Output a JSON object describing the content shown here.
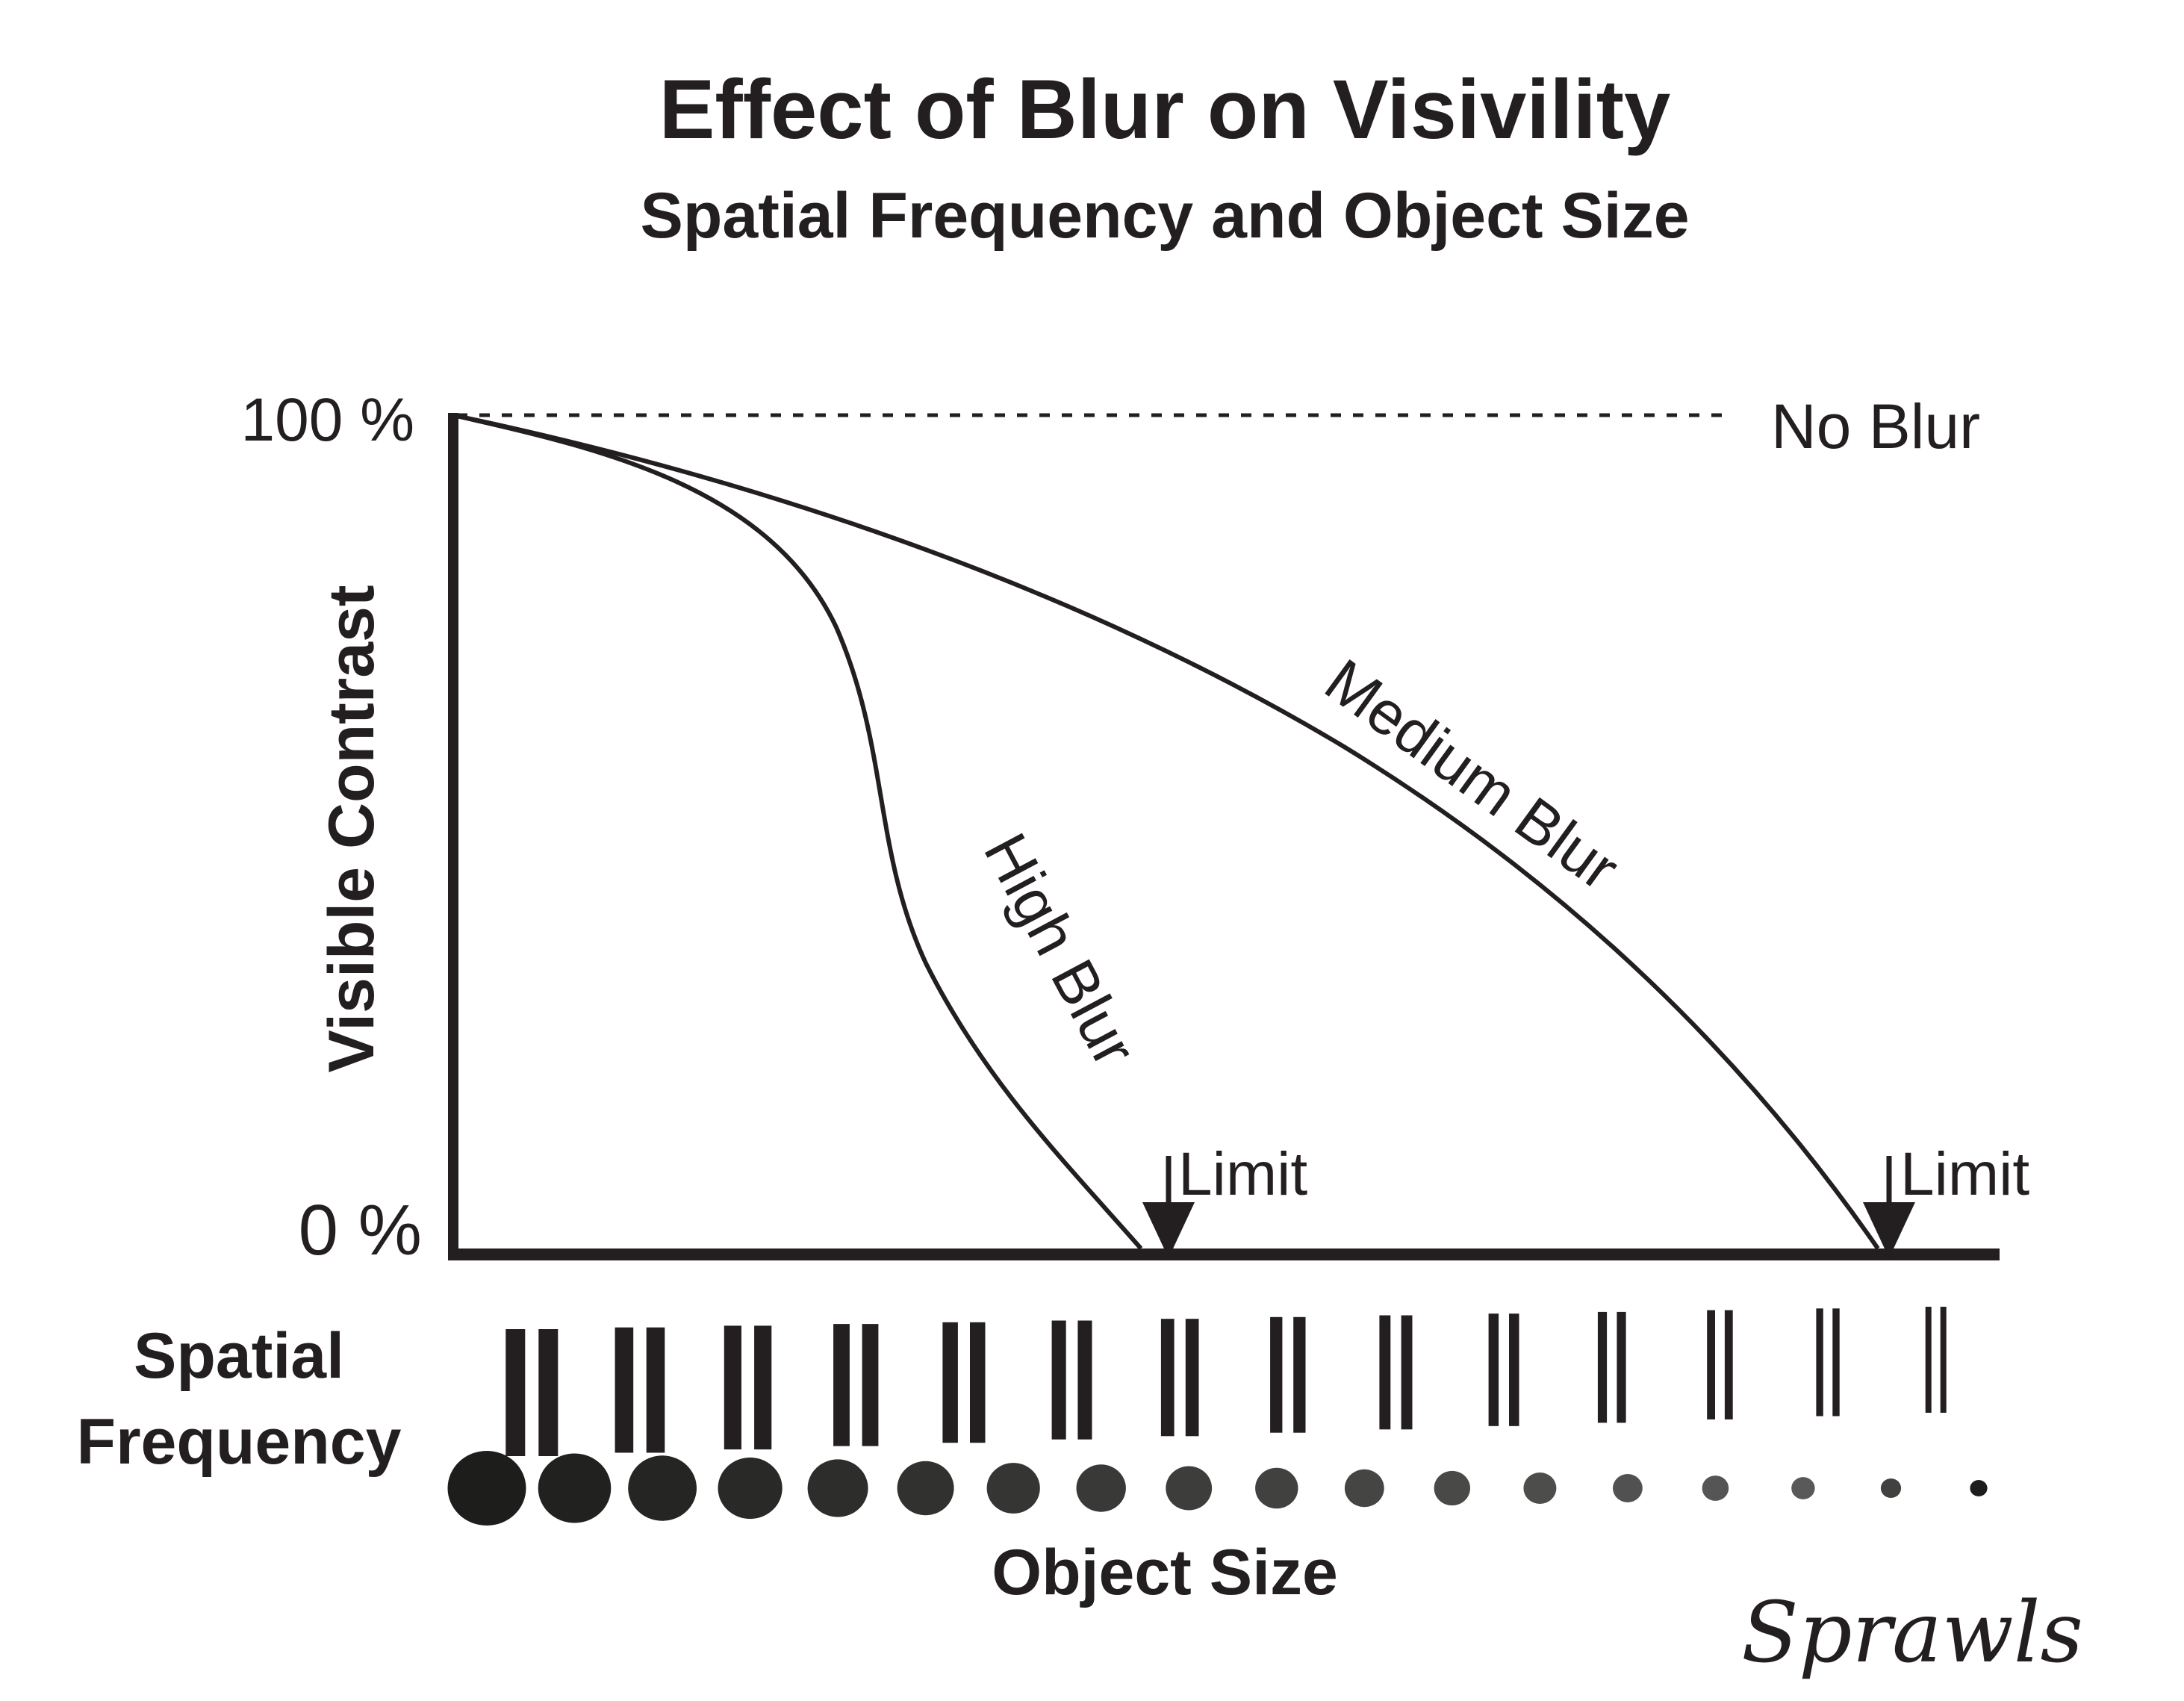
{
  "title": "Effect of Blur on Visivility",
  "subtitle": "Spatial Frequency and Object Size",
  "y_axis": {
    "label": "Visible Contrast",
    "top_label": "100 %",
    "bottom_label": "0 %"
  },
  "curves": {
    "no_blur_label": "No Blur",
    "medium_blur_label": "Medium Blur",
    "high_blur_label": "High Blur"
  },
  "limits": [
    {
      "label": "Limit"
    },
    {
      "label": "Limit"
    }
  ],
  "spatial_frequency_label_line1": "Spatial",
  "spatial_frequency_label_line2": "Frequency",
  "object_size_label": "Object Size",
  "signature": "Sprawls",
  "line_pattern_count": 14,
  "dot_count": 18,
  "colors": {
    "ink": "#231f20",
    "dots_dark": "#1d1d1b",
    "dots_light": "#5a5a5a"
  }
}
